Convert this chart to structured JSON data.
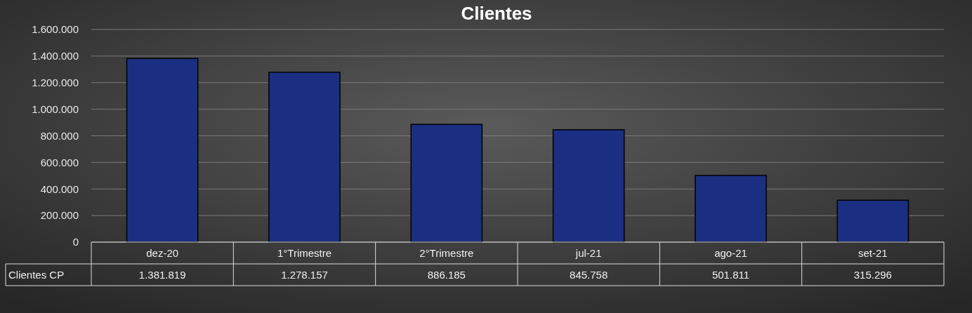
{
  "chart_data": {
    "type": "bar",
    "title": "Clientes",
    "categories": [
      "dez-20",
      "1°Trimestre",
      "2°Trimestre",
      "jul-21",
      "ago-21",
      "set-21"
    ],
    "series": [
      {
        "name": "Clientes CP",
        "color": "#1b2f82",
        "values": [
          1381819,
          1278157,
          886185,
          845758,
          501811,
          315296
        ],
        "value_labels": [
          "1.381.819",
          "1.278.157",
          "886.185",
          "845.758",
          "501.811",
          "315.296"
        ]
      }
    ],
    "ylim": [
      0,
      1600000
    ],
    "yticks": [
      {
        "value": 0,
        "label": "0"
      },
      {
        "value": 200000,
        "label": "200.000"
      },
      {
        "value": 400000,
        "label": "400.000"
      },
      {
        "value": 600000,
        "label": "600.000"
      },
      {
        "value": 800000,
        "label": "800.000"
      },
      {
        "value": 1000000,
        "label": "1.000.000"
      },
      {
        "value": 1200000,
        "label": "1.200.000"
      },
      {
        "value": 1400000,
        "label": "1.400.000"
      },
      {
        "value": 1600000,
        "label": "1.600.000"
      }
    ],
    "grid": "y"
  }
}
